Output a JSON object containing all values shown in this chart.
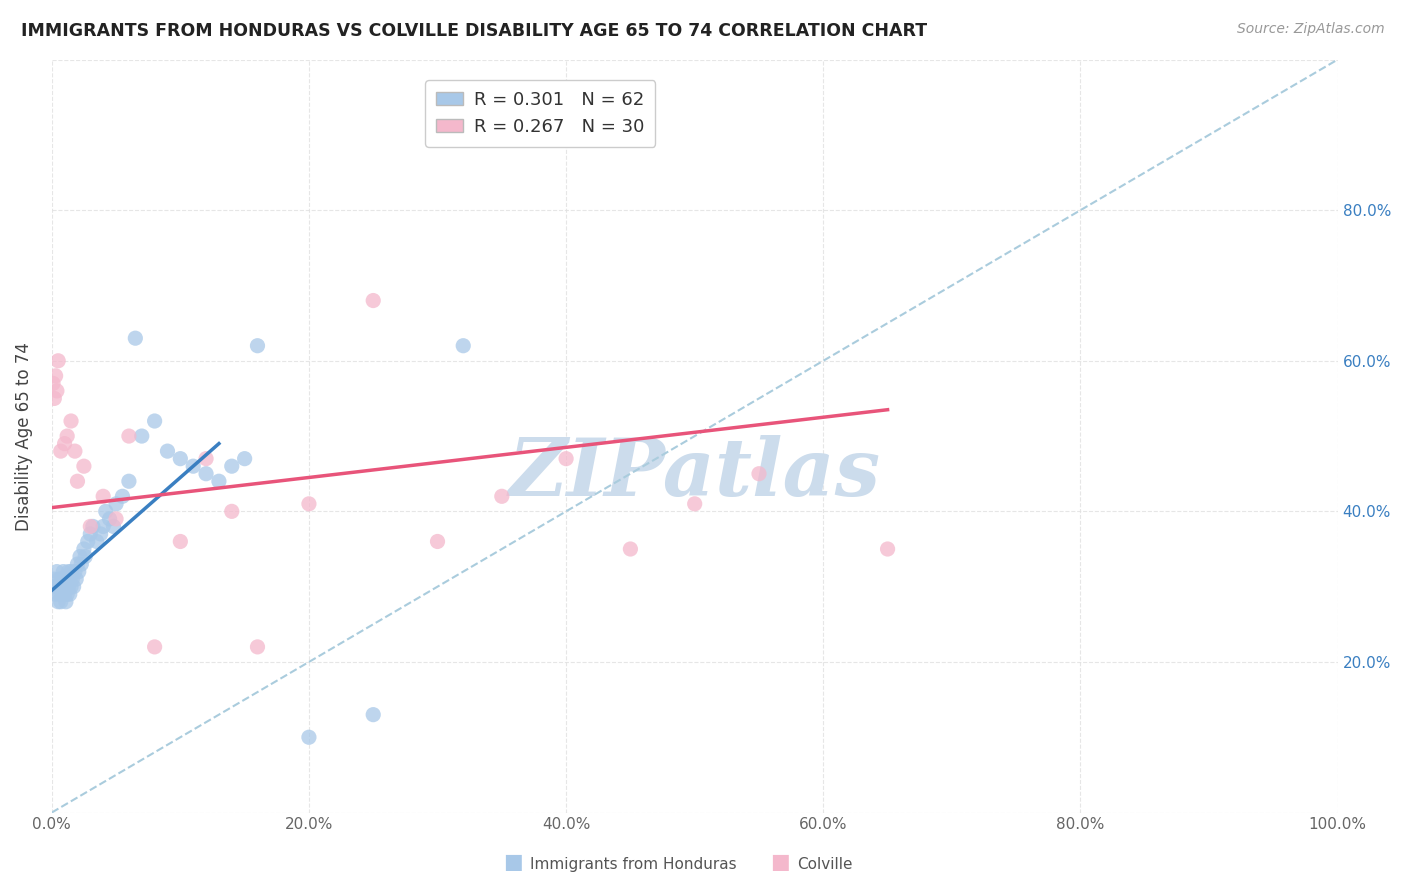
{
  "title": "IMMIGRANTS FROM HONDURAS VS COLVILLE DISABILITY AGE 65 TO 74 CORRELATION CHART",
  "source": "Source: ZipAtlas.com",
  "ylabel": "Disability Age 65 to 74",
  "xlim": [
    0.0,
    1.0
  ],
  "ylim": [
    0.0,
    1.0
  ],
  "xticks": [
    0.0,
    0.2,
    0.4,
    0.6,
    0.8,
    1.0
  ],
  "yticks_right": [
    0.2,
    0.4,
    0.6,
    0.8
  ],
  "xtick_labels": [
    "0.0%",
    "20.0%",
    "40.0%",
    "60.0%",
    "80.0%",
    "100.0%"
  ],
  "ytick_labels_right": [
    "20.0%",
    "40.0%",
    "60.0%",
    "80.0%"
  ],
  "background_color": "#ffffff",
  "grid_color": "#e0e0e0",
  "blue_color": "#a8c8e8",
  "pink_color": "#f4b8cc",
  "blue_line_color": "#3a7fc1",
  "pink_line_color": "#e8547a",
  "dashed_line_color": "#aaccdd",
  "R_blue": 0.301,
  "N_blue": 62,
  "R_pink": 0.267,
  "N_pink": 30,
  "blue_scatter_x": [
    0.001,
    0.002,
    0.003,
    0.004,
    0.005,
    0.005,
    0.006,
    0.006,
    0.007,
    0.007,
    0.008,
    0.008,
    0.009,
    0.009,
    0.01,
    0.01,
    0.011,
    0.011,
    0.012,
    0.012,
    0.013,
    0.013,
    0.014,
    0.014,
    0.015,
    0.015,
    0.016,
    0.017,
    0.018,
    0.019,
    0.02,
    0.021,
    0.022,
    0.023,
    0.025,
    0.026,
    0.028,
    0.03,
    0.032,
    0.035,
    0.038,
    0.04,
    0.042,
    0.045,
    0.048,
    0.05,
    0.055,
    0.06,
    0.065,
    0.07,
    0.08,
    0.09,
    0.1,
    0.11,
    0.12,
    0.13,
    0.14,
    0.15,
    0.16,
    0.2,
    0.25,
    0.32
  ],
  "blue_scatter_y": [
    0.3,
    0.31,
    0.29,
    0.32,
    0.3,
    0.28,
    0.31,
    0.29,
    0.3,
    0.28,
    0.29,
    0.31,
    0.3,
    0.32,
    0.29,
    0.31,
    0.3,
    0.28,
    0.31,
    0.29,
    0.32,
    0.3,
    0.31,
    0.29,
    0.3,
    0.32,
    0.31,
    0.3,
    0.32,
    0.31,
    0.33,
    0.32,
    0.34,
    0.33,
    0.35,
    0.34,
    0.36,
    0.37,
    0.38,
    0.36,
    0.37,
    0.38,
    0.4,
    0.39,
    0.38,
    0.41,
    0.42,
    0.44,
    0.63,
    0.5,
    0.52,
    0.48,
    0.47,
    0.46,
    0.45,
    0.44,
    0.46,
    0.47,
    0.62,
    0.1,
    0.13,
    0.62
  ],
  "pink_scatter_x": [
    0.001,
    0.002,
    0.003,
    0.004,
    0.005,
    0.007,
    0.01,
    0.012,
    0.015,
    0.018,
    0.02,
    0.025,
    0.03,
    0.04,
    0.05,
    0.06,
    0.08,
    0.1,
    0.12,
    0.14,
    0.16,
    0.2,
    0.25,
    0.3,
    0.35,
    0.4,
    0.45,
    0.5,
    0.55,
    0.65
  ],
  "pink_scatter_y": [
    0.57,
    0.55,
    0.58,
    0.56,
    0.6,
    0.48,
    0.49,
    0.5,
    0.52,
    0.48,
    0.44,
    0.46,
    0.38,
    0.42,
    0.39,
    0.5,
    0.22,
    0.36,
    0.47,
    0.4,
    0.22,
    0.41,
    0.68,
    0.36,
    0.42,
    0.47,
    0.35,
    0.41,
    0.45,
    0.35
  ],
  "blue_line_x": [
    0.0,
    0.13
  ],
  "blue_line_y": [
    0.295,
    0.49
  ],
  "pink_line_x": [
    0.0,
    0.65
  ],
  "pink_line_y": [
    0.405,
    0.535
  ],
  "watermark": "ZIPatlas",
  "watermark_color": "#ccdcec"
}
